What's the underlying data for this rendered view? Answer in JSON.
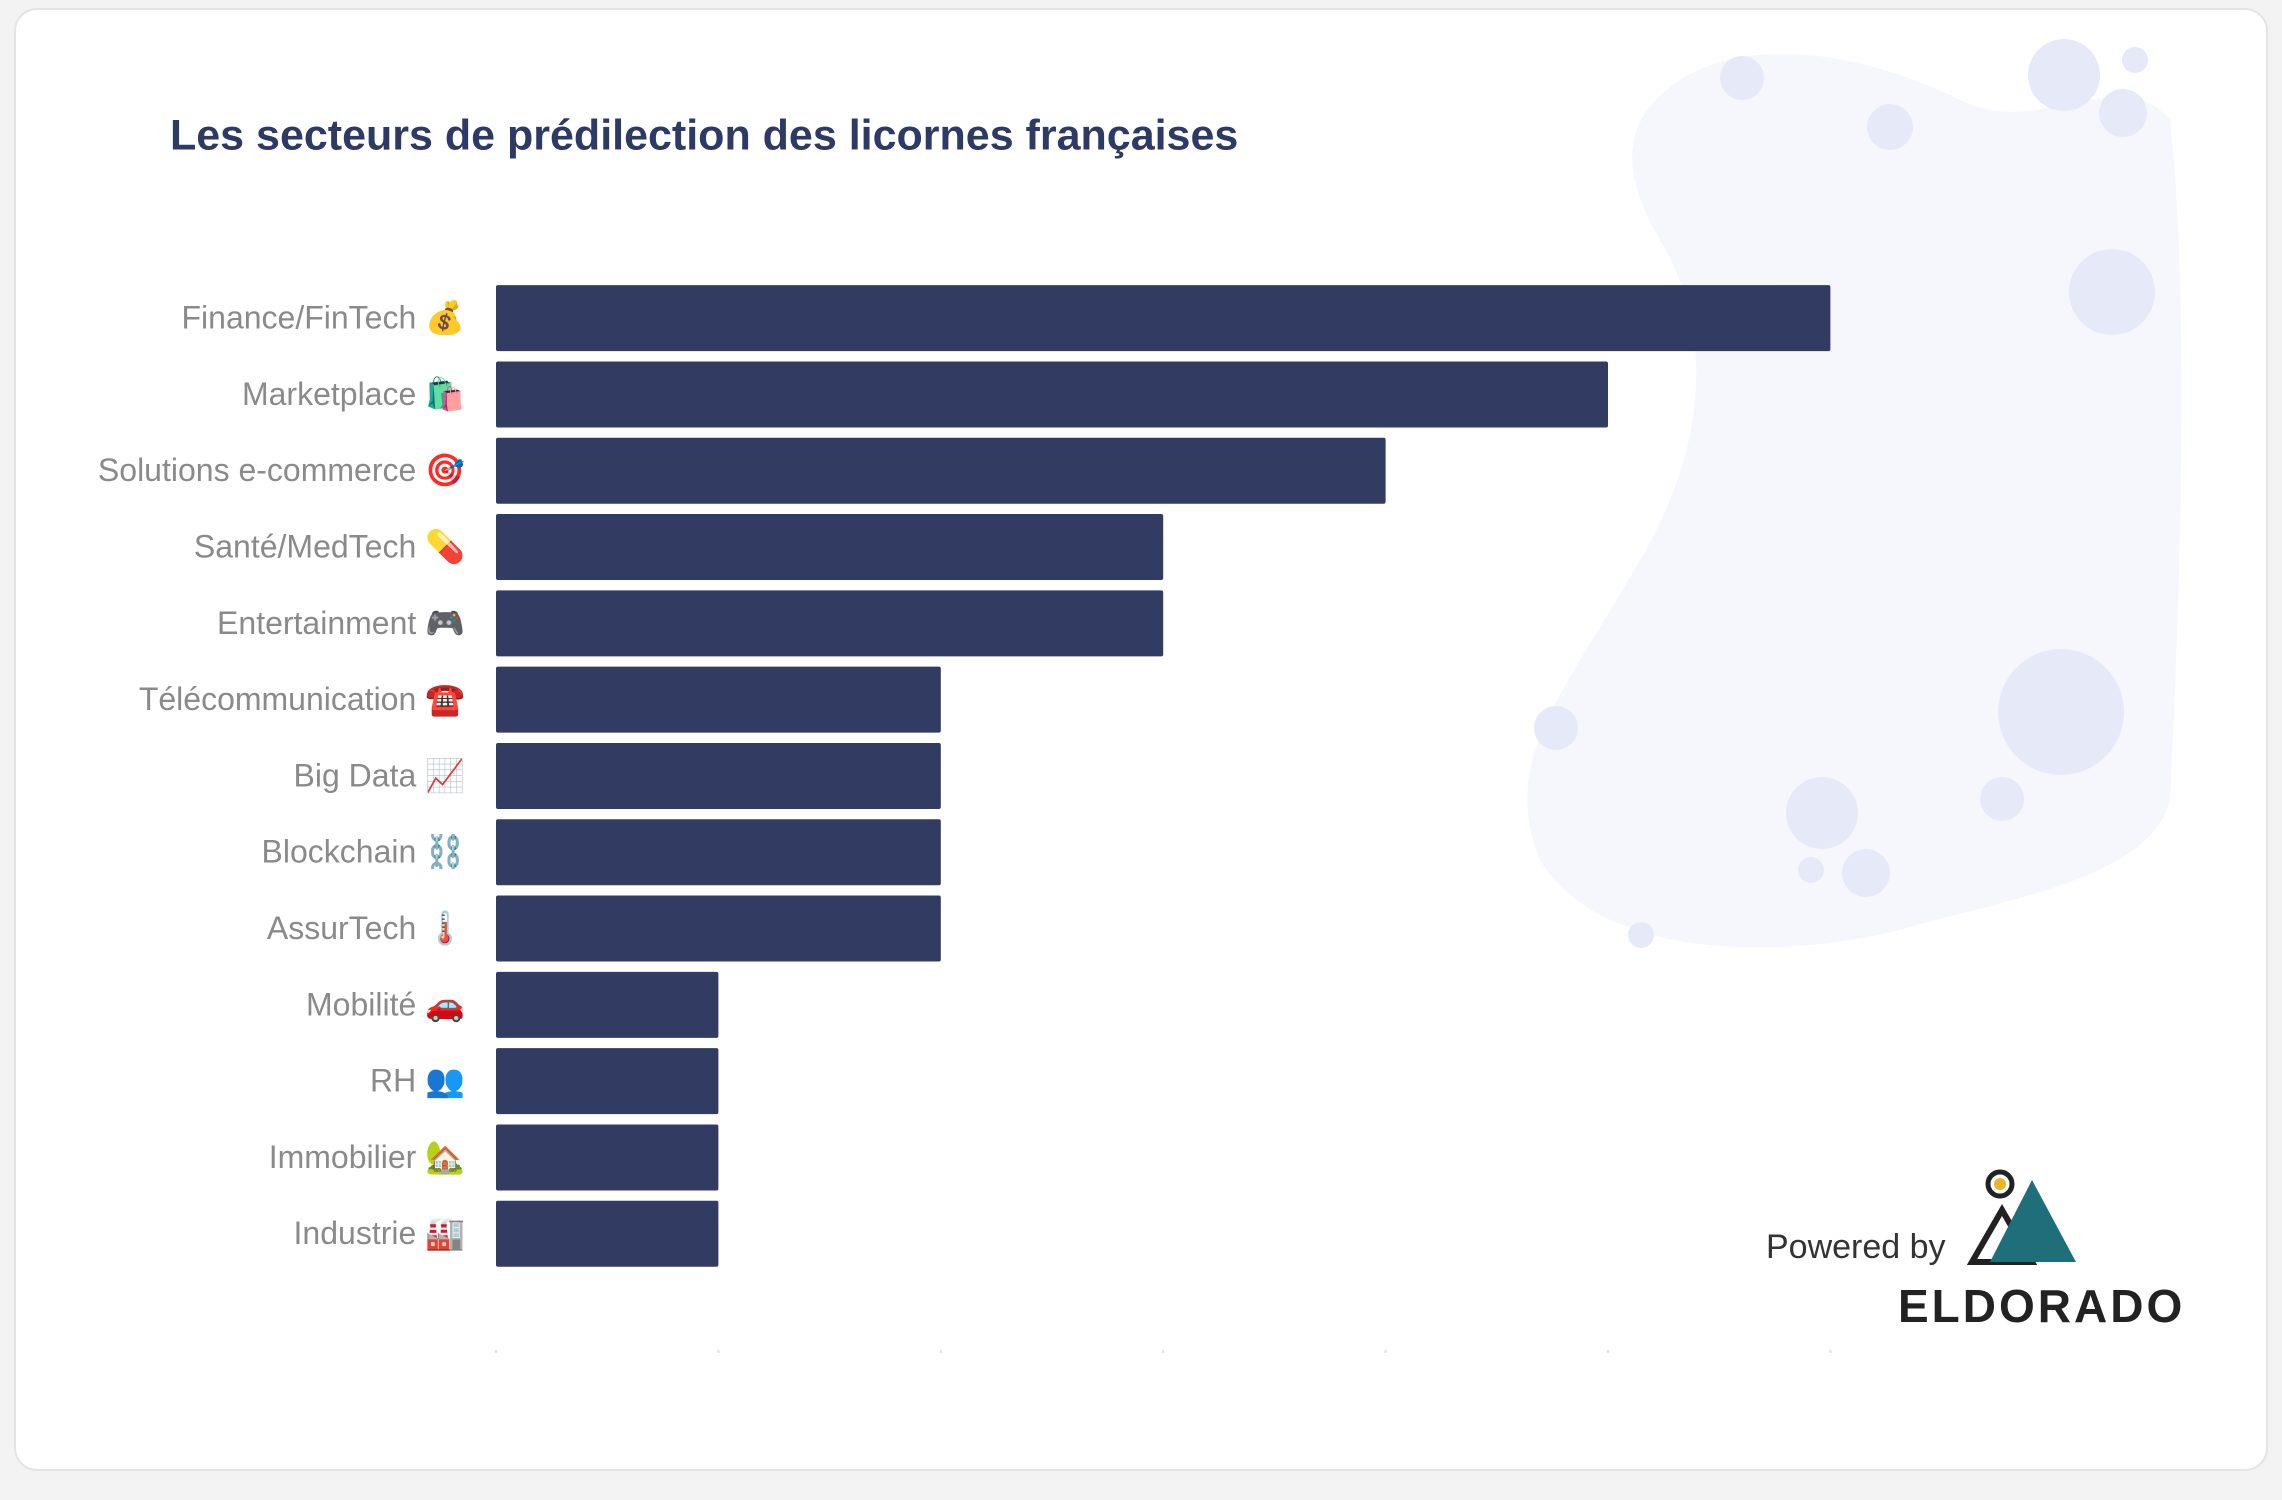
{
  "chart_data": {
    "type": "bar",
    "orientation": "horizontal",
    "title": "Les secteurs de prédilection des licornes françaises",
    "categories": [
      "Finance/FinTech 💰",
      "Marketplace 🛍️",
      "Solutions e-commerce 🎯",
      "Santé/MedTech 💊",
      "Entertainment 🎮",
      "Télécommunication ☎️",
      "Big Data 📈",
      "Blockchain ⛓️",
      "AssurTech 🌡️",
      "Mobilité 🚗",
      "RH 👥",
      "Immobilier 🏡",
      "Industrie 🏭"
    ],
    "values": [
      6,
      5,
      4,
      3,
      3,
      2,
      2,
      2,
      2,
      1,
      1,
      1,
      1
    ],
    "color": "#323c63",
    "xlim": [
      0,
      6
    ],
    "xticks": [
      0,
      1,
      2,
      3,
      4,
      5,
      6
    ]
  },
  "branding": {
    "powered_by": "Powered by",
    "name": "ELDORADO"
  }
}
